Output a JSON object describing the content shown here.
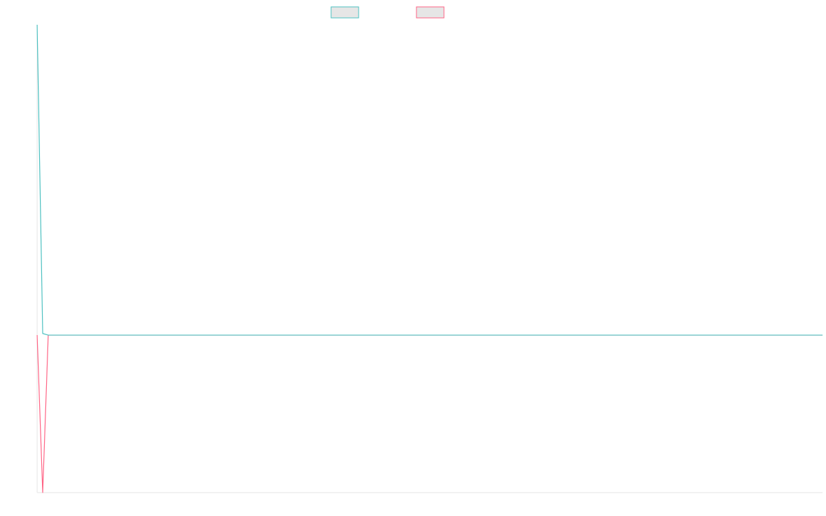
{
  "chart_data": {
    "type": "line",
    "title": "",
    "xlabel": "",
    "ylabel": "",
    "grid": false,
    "legend_placement": "top-center",
    "x": [
      0,
      1,
      2,
      3,
      4,
      5,
      6,
      7,
      8,
      9,
      10,
      11,
      12,
      13,
      14,
      15,
      16,
      17,
      18,
      19,
      20,
      21,
      22,
      23,
      24,
      25,
      26,
      27,
      28,
      29,
      30,
      31,
      32,
      33,
      34,
      35,
      36,
      37,
      38,
      39,
      40,
      41,
      42,
      43,
      44,
      45,
      46,
      47,
      48,
      49,
      50,
      51,
      52,
      53,
      54,
      55,
      56,
      57,
      58,
      59,
      60,
      61,
      62,
      63,
      64,
      65,
      66,
      67,
      68,
      69,
      70,
      71,
      72,
      73,
      74,
      75,
      76,
      77,
      78,
      79,
      80,
      81,
      82,
      83,
      84,
      85,
      86,
      87,
      88,
      89,
      90,
      91,
      92,
      93,
      94,
      95,
      96,
      97,
      98,
      99,
      100,
      101,
      102,
      103,
      104,
      105,
      106,
      107,
      108,
      109,
      110,
      111,
      112,
      113,
      114,
      115,
      116,
      117,
      118,
      119,
      120,
      121,
      122,
      123,
      124,
      125,
      126,
      127,
      128,
      129,
      130,
      131,
      132,
      133,
      134,
      135,
      136,
      137,
      138,
      139,
      140,
      141,
      142
    ],
    "xlim": [
      0,
      142
    ],
    "ylim": [
      -100,
      197
    ],
    "series": [
      {
        "color": "#4bc0c0",
        "values": [
          197,
          1,
          0,
          0,
          0,
          0,
          0,
          0,
          0,
          0,
          0,
          0,
          0,
          0,
          0,
          0,
          0,
          0,
          0,
          0,
          0,
          0,
          0,
          0,
          0,
          0,
          0,
          0,
          0,
          0,
          0,
          0,
          0,
          0,
          0,
          0,
          0,
          0,
          0,
          0,
          0,
          0,
          0,
          0,
          0,
          0,
          0,
          0,
          0,
          0,
          0,
          0,
          0,
          0,
          0,
          0,
          0,
          0,
          0,
          0,
          0,
          0,
          0,
          0,
          0,
          0,
          0,
          0,
          0,
          0,
          0,
          0,
          0,
          0,
          0,
          0,
          0,
          0,
          0,
          0,
          0,
          0,
          0,
          0,
          0,
          0,
          0,
          0,
          0,
          0,
          0,
          0,
          0,
          0,
          0,
          0,
          0,
          0,
          0,
          0,
          0,
          0,
          0,
          0,
          0,
          0,
          0,
          0,
          0,
          0,
          0,
          0,
          0,
          0,
          0,
          0,
          0,
          0,
          0,
          0,
          0,
          0,
          0,
          0,
          0,
          0,
          0,
          0,
          0,
          0,
          0,
          0,
          0,
          0,
          0,
          0,
          0,
          0,
          0,
          0,
          0,
          0,
          0
        ]
      },
      {
        "color": "#ff6384",
        "values": [
          0,
          -100,
          0,
          0,
          0,
          0,
          0,
          0,
          0,
          0,
          0,
          0,
          0,
          0,
          0,
          0,
          0,
          0,
          0,
          0,
          0,
          0,
          0,
          0,
          0,
          0,
          0,
          0,
          0,
          0,
          0,
          0,
          0,
          0,
          0,
          0,
          0,
          0,
          0,
          0,
          0,
          0,
          0,
          0,
          0,
          0,
          0,
          0,
          0,
          0,
          0,
          0,
          0,
          0,
          0,
          0,
          0,
          0,
          0,
          0,
          0,
          0,
          0,
          0,
          0,
          0,
          0,
          0,
          0,
          0,
          0,
          0,
          0,
          0,
          0,
          0,
          0,
          0,
          0,
          0,
          0,
          0,
          0,
          0,
          0,
          0,
          0,
          0,
          0,
          0,
          0,
          0,
          0,
          0,
          0,
          0,
          0,
          0,
          0,
          0,
          0,
          0,
          0,
          0,
          0,
          0,
          0,
          0,
          0,
          0,
          0,
          0,
          0,
          0,
          0,
          0,
          0,
          0,
          0,
          0,
          0,
          0,
          0,
          0,
          0,
          0,
          0,
          0,
          0,
          0,
          0,
          0,
          0,
          0,
          0,
          0,
          0,
          0,
          0,
          0,
          0,
          0,
          0
        ]
      }
    ]
  }
}
